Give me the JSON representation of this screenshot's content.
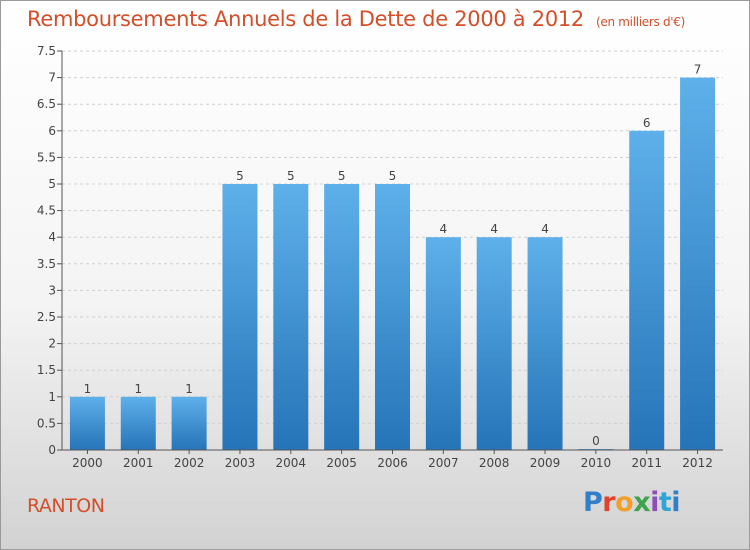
{
  "header": {
    "title": "Remboursements Annuels de la Dette de 2000 à 2012",
    "subtitle": "(en milliers d'€)"
  },
  "footer": {
    "commune": "RANTON",
    "brand": "Proxiti"
  },
  "colors": {
    "title": "#d24f2a",
    "bar_light": "#5eb0ea",
    "bar_dark": "#2574b8",
    "grid": "#cfcfcf",
    "axis": "#555555"
  },
  "chart_data": {
    "type": "bar",
    "title": "Remboursements Annuels de la Dette de 2000 à 2012",
    "xlabel": "",
    "ylabel": "",
    "categories": [
      "2000",
      "2001",
      "2002",
      "2003",
      "2004",
      "2005",
      "2006",
      "2007",
      "2008",
      "2009",
      "2010",
      "2011",
      "2012"
    ],
    "values": [
      1,
      1,
      1,
      5,
      5,
      5,
      5,
      4,
      4,
      4,
      0,
      6,
      7
    ],
    "data_labels": [
      "1",
      "1",
      "1",
      "5",
      "5",
      "5",
      "5",
      "4",
      "4",
      "4",
      "0",
      "6",
      "7"
    ],
    "ylim": [
      0,
      7.5
    ],
    "yticks": [
      0,
      0.5,
      1,
      1.5,
      2,
      2.5,
      3,
      3.5,
      4,
      4.5,
      5,
      5.5,
      6,
      6.5,
      7,
      7.5
    ],
    "ytick_labels": [
      "0",
      "0.5",
      "1",
      "1.5",
      "2",
      "2.5",
      "3",
      "3.5",
      "4",
      "4.5",
      "5",
      "5.5",
      "6",
      "6.5",
      "7",
      "7.5"
    ],
    "grid": true,
    "legend": "none"
  }
}
